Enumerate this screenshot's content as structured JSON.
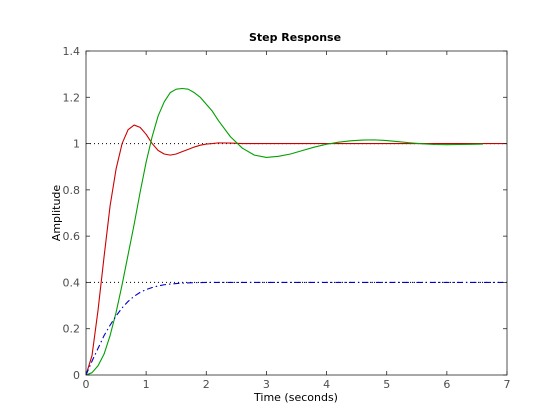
{
  "chart_data": {
    "type": "line",
    "title": "Step Response",
    "xlabel": "Time (seconds)",
    "ylabel": "Amplitude",
    "xlim": [
      0,
      7
    ],
    "ylim": [
      0,
      1.4
    ],
    "xticks": [
      "0",
      "1",
      "2",
      "3",
      "4",
      "5",
      "6",
      "7"
    ],
    "yticks": [
      "0",
      "0.2",
      "0.4",
      "0.6",
      "0.8",
      "1",
      "1.2",
      "1.4"
    ],
    "grid": false,
    "legend": "none",
    "reference_lines": [
      {
        "y": 1.0,
        "style": "dotted",
        "color": "#000000"
      },
      {
        "y": 0.4,
        "style": "dotted",
        "color": "#000000"
      }
    ],
    "series": [
      {
        "color": "#cc0000",
        "style": "solid",
        "x": [
          0,
          0.1,
          0.2,
          0.3,
          0.4,
          0.5,
          0.6,
          0.7,
          0.8,
          0.9,
          1.0,
          1.1,
          1.2,
          1.3,
          1.4,
          1.5,
          1.6,
          1.7,
          1.8,
          1.9,
          2.0,
          2.1,
          2.2,
          2.4,
          2.6,
          3.0,
          4.0,
          5.0,
          6.0,
          7.0
        ],
        "y": [
          0,
          0.084,
          0.28,
          0.51,
          0.73,
          0.89,
          1.0,
          1.06,
          1.08,
          1.07,
          1.04,
          1.0,
          0.97,
          0.955,
          0.95,
          0.955,
          0.965,
          0.975,
          0.985,
          0.993,
          0.998,
          1.0,
          1.003,
          1.002,
          1.0,
          1.0,
          1.0,
          1.0,
          1.0,
          1.0
        ]
      },
      {
        "color": "#00a000",
        "style": "solid",
        "x": [
          0,
          0.1,
          0.2,
          0.3,
          0.4,
          0.5,
          0.6,
          0.7,
          0.8,
          0.9,
          1.0,
          1.1,
          1.2,
          1.3,
          1.4,
          1.5,
          1.6,
          1.7,
          1.8,
          1.9,
          2.0,
          2.1,
          2.2,
          2.4,
          2.6,
          2.8,
          3.0,
          3.2,
          3.4,
          3.6,
          3.8,
          4.0,
          4.2,
          4.4,
          4.6,
          4.8,
          5.0,
          5.2,
          5.4,
          5.6,
          5.8,
          6.0,
          6.2,
          6.4,
          6.6
        ],
        "y": [
          0,
          0.01,
          0.04,
          0.09,
          0.17,
          0.27,
          0.39,
          0.52,
          0.65,
          0.79,
          0.92,
          1.03,
          1.12,
          1.18,
          1.22,
          1.235,
          1.238,
          1.235,
          1.22,
          1.2,
          1.17,
          1.14,
          1.1,
          1.03,
          0.98,
          0.95,
          0.94,
          0.945,
          0.955,
          0.97,
          0.985,
          0.997,
          1.006,
          1.012,
          1.015,
          1.016,
          1.013,
          1.008,
          1.003,
          0.999,
          0.996,
          0.995,
          0.996,
          0.997,
          0.998
        ]
      },
      {
        "color": "#0000cc",
        "style": "dashdot",
        "x": [
          0,
          0.1,
          0.2,
          0.3,
          0.4,
          0.5,
          0.6,
          0.7,
          0.8,
          0.9,
          1.0,
          1.1,
          1.2,
          1.3,
          1.4,
          1.5,
          1.6,
          1.8,
          2.0,
          2.5,
          3.0,
          4.0,
          5.0,
          6.0,
          7.0
        ],
        "y": [
          0,
          0.06,
          0.115,
          0.17,
          0.215,
          0.255,
          0.29,
          0.318,
          0.34,
          0.357,
          0.369,
          0.378,
          0.385,
          0.39,
          0.393,
          0.395,
          0.397,
          0.399,
          0.4,
          0.4,
          0.4,
          0.4,
          0.4,
          0.4,
          0.4
        ]
      }
    ]
  }
}
